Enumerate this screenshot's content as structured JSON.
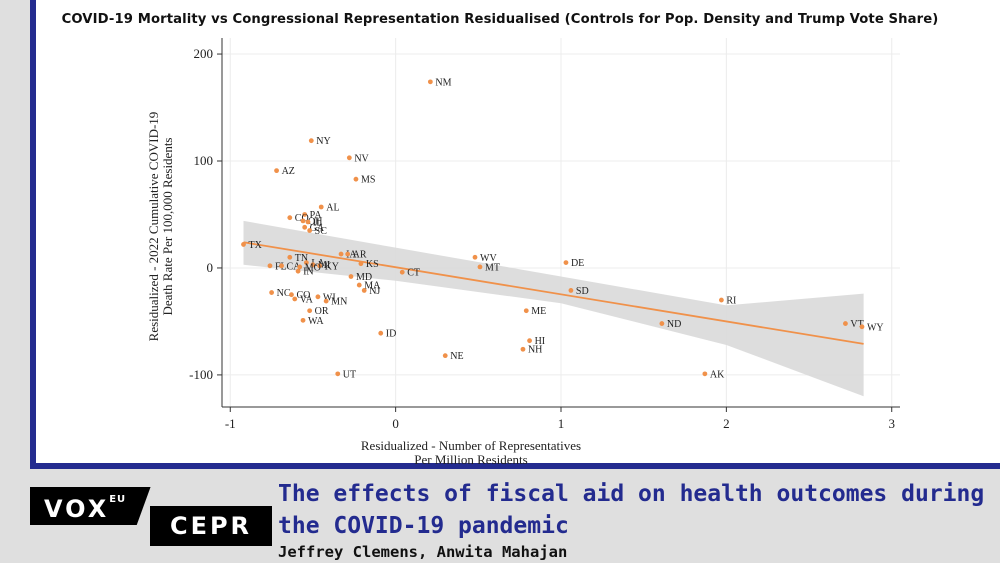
{
  "header": {
    "title": "COVID-19 Mortality vs Congressional Representation Residualised (Controls for Pop. Density and Trump Vote Share)"
  },
  "chart_data": {
    "type": "scatter",
    "xlabel": [
      "Residualized - Number of Representatives",
      "Per Million Residents"
    ],
    "ylabel": [
      "Residualized - 2022 Cumulative COVID-19",
      "Death Rate Per 100,000 Residents"
    ],
    "xlim": [
      -1.05,
      3.05
    ],
    "ylim": [
      -130,
      215
    ],
    "xticks": [
      -1,
      0,
      1,
      2,
      3
    ],
    "yticks": [
      -100,
      0,
      100,
      200
    ],
    "grid": true,
    "colors": {
      "points": "#f0914a",
      "fit_line": "#f0914a",
      "ci_band": "#d9d9d9"
    },
    "fit_line": {
      "x": [
        -0.92,
        2.83
      ],
      "y": [
        24,
        -71
      ]
    },
    "ci_band": {
      "upper": [
        [
          -0.92,
          44
        ],
        [
          0.0,
          19
        ],
        [
          1.0,
          -8
        ],
        [
          2.0,
          -35
        ],
        [
          2.83,
          -24
        ]
      ],
      "lower": [
        [
          -0.92,
          3
        ],
        [
          0.0,
          -12
        ],
        [
          1.0,
          -33
        ],
        [
          2.0,
          -72
        ],
        [
          2.83,
          -120
        ]
      ]
    },
    "points": [
      {
        "label": "NM",
        "x": 0.21,
        "y": 174
      },
      {
        "label": "NY",
        "x": -0.51,
        "y": 119
      },
      {
        "label": "NV",
        "x": -0.28,
        "y": 103
      },
      {
        "label": "AZ",
        "x": -0.72,
        "y": 91
      },
      {
        "label": "MS",
        "x": -0.24,
        "y": 83
      },
      {
        "label": "AL",
        "x": -0.45,
        "y": 57
      },
      {
        "label": "PA",
        "x": -0.55,
        "y": 50
      },
      {
        "label": "CO",
        "x": -0.64,
        "y": 47
      },
      {
        "label": "OH",
        "x": -0.56,
        "y": 44
      },
      {
        "label": "IL",
        "x": -0.53,
        "y": 43
      },
      {
        "label": "GA",
        "x": -0.55,
        "y": 38
      },
      {
        "label": "SC",
        "x": -0.52,
        "y": 35
      },
      {
        "label": "TX",
        "x": -0.92,
        "y": 22
      },
      {
        "label": "IA",
        "x": -0.33,
        "y": 13
      },
      {
        "label": "AR",
        "x": -0.29,
        "y": 13
      },
      {
        "label": "WV",
        "x": 0.48,
        "y": 10
      },
      {
        "label": "TN",
        "x": -0.64,
        "y": 10
      },
      {
        "label": "DE",
        "x": 1.03,
        "y": 5
      },
      {
        "label": "LA",
        "x": -0.54,
        "y": 5
      },
      {
        "label": "KS",
        "x": -0.21,
        "y": 4
      },
      {
        "label": "MI",
        "x": -0.5,
        "y": 3
      },
      {
        "label": "KY",
        "x": -0.46,
        "y": 2
      },
      {
        "label": "FL",
        "x": -0.76,
        "y": 2
      },
      {
        "label": "CA",
        "x": -0.69,
        "y": 2
      },
      {
        "label": "MO",
        "x": -0.58,
        "y": 1
      },
      {
        "label": "MT",
        "x": 0.51,
        "y": 1
      },
      {
        "label": "IN",
        "x": -0.59,
        "y": -3
      },
      {
        "label": "CT",
        "x": 0.04,
        "y": -4
      },
      {
        "label": "MD",
        "x": -0.27,
        "y": -8
      },
      {
        "label": "MA",
        "x": -0.22,
        "y": -16
      },
      {
        "label": "NJ",
        "x": -0.19,
        "y": -21
      },
      {
        "label": "SD",
        "x": 1.06,
        "y": -21
      },
      {
        "label": "NC",
        "x": -0.75,
        "y": -23
      },
      {
        "label": "CO",
        "x": -0.63,
        "y": -25
      },
      {
        "label": "VA",
        "x": -0.61,
        "y": -29
      },
      {
        "label": "WI",
        "x": -0.47,
        "y": -27
      },
      {
        "label": "MN",
        "x": -0.42,
        "y": -31
      },
      {
        "label": "RI",
        "x": 1.97,
        "y": -30
      },
      {
        "label": "OR",
        "x": -0.52,
        "y": -40
      },
      {
        "label": "ME",
        "x": 0.79,
        "y": -40
      },
      {
        "label": "WA",
        "x": -0.56,
        "y": -49
      },
      {
        "label": "ND",
        "x": 1.61,
        "y": -52
      },
      {
        "label": "VT",
        "x": 2.72,
        "y": -52
      },
      {
        "label": "WY",
        "x": 2.82,
        "y": -55
      },
      {
        "label": "ID",
        "x": -0.09,
        "y": -61
      },
      {
        "label": "HI",
        "x": 0.81,
        "y": -68
      },
      {
        "label": "NH",
        "x": 0.77,
        "y": -76
      },
      {
        "label": "NE",
        "x": 0.3,
        "y": -82
      },
      {
        "label": "UT",
        "x": -0.35,
        "y": -99
      },
      {
        "label": "AK",
        "x": 1.87,
        "y": -99
      }
    ]
  },
  "footer": {
    "logo_vox": "VOX",
    "logo_eu": "EU",
    "logo_cepr": "CEPR",
    "article_title": "The effects of fiscal aid on health outcomes during the COVID-19 pandemic",
    "authors": "Jeffrey Clemens, Anwita Mahajan"
  }
}
